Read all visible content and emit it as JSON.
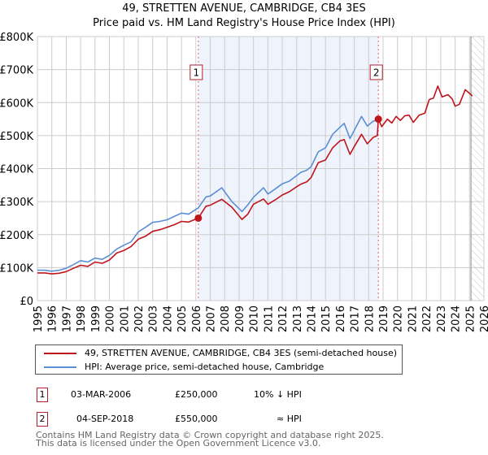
{
  "header": {
    "title": "49, STRETTEN AVENUE, CAMBRIDGE, CB4 3ES",
    "subtitle": "Price paid vs. HM Land Registry's House Price Index (HPI)"
  },
  "colors": {
    "price_paid": "#c0141c",
    "hpi": "#5b8fd4",
    "shade": "#eef3fc",
    "marker_border": "#b01e2a",
    "grid": "#cccccc"
  },
  "chart_data": {
    "type": "line",
    "title": "Price paid vs. HM Land Registry's House Price Index (HPI)",
    "xlabel": "",
    "ylabel": "",
    "xlim": [
      1995,
      2026
    ],
    "ylim": [
      0,
      800000
    ],
    "grid": true,
    "x_ticks": [
      "1995",
      "1996",
      "1997",
      "1998",
      "1999",
      "2000",
      "2001",
      "2002",
      "2003",
      "2004",
      "2005",
      "2006",
      "2007",
      "2008",
      "2009",
      "2010",
      "2011",
      "2012",
      "2013",
      "2014",
      "2015",
      "2016",
      "2017",
      "2018",
      "2019",
      "2020",
      "2021",
      "2022",
      "2023",
      "2024",
      "2025",
      "2026"
    ],
    "y_ticks": [
      {
        "value": 0,
        "label": "£0"
      },
      {
        "value": 100000,
        "label": "£100K"
      },
      {
        "value": 200000,
        "label": "£200K"
      },
      {
        "value": 300000,
        "label": "£300K"
      },
      {
        "value": 400000,
        "label": "£400K"
      },
      {
        "value": 500000,
        "label": "£500K"
      },
      {
        "value": 600000,
        "label": "£600K"
      },
      {
        "value": 700000,
        "label": "£700K"
      },
      {
        "value": 800000,
        "label": "£800K"
      }
    ],
    "shaded_period": {
      "from": 2006.17,
      "to": 2018.67
    },
    "forecast_hatch_from": 2025.1,
    "series": [
      {
        "name": "49, STRETTEN AVENUE, CAMBRIDGE, CB4 3ES (semi-detached house)",
        "key": "price_paid",
        "x": [
          1995.0,
          1995.5,
          1996.0,
          1996.5,
          1997.0,
          1997.5,
          1998.0,
          1998.5,
          1999.0,
          1999.5,
          2000.0,
          2000.5,
          2001.0,
          2001.5,
          2002.0,
          2002.5,
          2003.0,
          2003.5,
          2004.0,
          2004.5,
          2005.0,
          2005.5,
          2006.17,
          2006.7,
          2007.0,
          2007.8,
          2008.5,
          2009.2,
          2009.6,
          2010.0,
          2010.7,
          2011.0,
          2011.5,
          2012.0,
          2012.5,
          2013.0,
          2013.3,
          2013.7,
          2014.0,
          2014.5,
          2015.0,
          2015.5,
          2016.0,
          2016.3,
          2016.7,
          2017.0,
          2017.5,
          2017.9,
          2018.3,
          2018.6,
          2018.67,
          2018.9,
          2019.3,
          2019.6,
          2019.9,
          2020.2,
          2020.5,
          2020.8,
          2021.1,
          2021.5,
          2021.9,
          2022.2,
          2022.5,
          2022.8,
          2023.1,
          2023.5,
          2023.8,
          2024.0,
          2024.3,
          2024.7,
          2025.0,
          2025.2
        ],
        "y": [
          84000,
          84000,
          81000,
          83000,
          88000,
          98000,
          107000,
          104000,
          117000,
          113000,
          123000,
          144000,
          152000,
          164000,
          186000,
          195000,
          210000,
          215000,
          222000,
          230000,
          240000,
          238000,
          250000,
          286000,
          289000,
          307000,
          283000,
          246000,
          262000,
          292000,
          308000,
          292000,
          305000,
          320000,
          330000,
          345000,
          353000,
          360000,
          373000,
          418000,
          426000,
          463000,
          484000,
          488000,
          443000,
          467000,
          504000,
          475000,
          494000,
          500000,
          550000,
          527000,
          550000,
          538000,
          558000,
          546000,
          560000,
          562000,
          540000,
          562000,
          568000,
          609000,
          614000,
          650000,
          617000,
          624000,
          611000,
          589000,
          595000,
          639000,
          628000,
          620000
        ]
      },
      {
        "name": "HPI: Average price, semi-detached house, Cambridge",
        "key": "hpi",
        "x": [
          1995.0,
          1995.5,
          1996.0,
          1996.5,
          1997.0,
          1997.5,
          1998.0,
          1998.5,
          1999.0,
          1999.5,
          2000.0,
          2000.5,
          2001.0,
          2001.5,
          2002.0,
          2002.5,
          2003.0,
          2003.5,
          2004.0,
          2004.5,
          2005.0,
          2005.5,
          2006.17,
          2006.7,
          2007.0,
          2007.8,
          2008.5,
          2009.2,
          2009.6,
          2010.0,
          2010.7,
          2011.0,
          2011.5,
          2012.0,
          2012.5,
          2013.0,
          2013.3,
          2013.7,
          2014.0,
          2014.5,
          2015.0,
          2015.5,
          2016.0,
          2016.3,
          2016.7,
          2017.0,
          2017.5,
          2017.9,
          2018.3,
          2018.67
        ],
        "y": [
          92000,
          92000,
          89000,
          92000,
          98000,
          109000,
          121000,
          117000,
          129000,
          125000,
          137000,
          156000,
          168000,
          178000,
          208000,
          222000,
          237000,
          240000,
          245000,
          255000,
          265000,
          262000,
          281000,
          314000,
          317000,
          342000,
          300000,
          270000,
          290000,
          313000,
          342000,
          323000,
          338000,
          354000,
          362000,
          379000,
          389000,
          395000,
          406000,
          451000,
          463000,
          504000,
          525000,
          537000,
          491000,
          516000,
          558000,
          529000,
          543000,
          550000
        ]
      }
    ],
    "annotations": [
      {
        "label": "1",
        "x": 2006.17,
        "y": 250000
      },
      {
        "label": "2",
        "x": 2018.67,
        "y": 550000
      }
    ]
  },
  "legend": {
    "items": [
      {
        "label": "49, STRETTEN AVENUE, CAMBRIDGE, CB4 3ES (semi-detached house)"
      },
      {
        "label": "HPI: Average price, semi-detached house, Cambridge"
      }
    ]
  },
  "transactions": [
    {
      "num": "1",
      "date": "03-MAR-2006",
      "price": "£250,000",
      "hpi": "10% ↓ HPI"
    },
    {
      "num": "2",
      "date": "04-SEP-2018",
      "price": "£550,000",
      "hpi": "≈ HPI"
    }
  ],
  "footer": {
    "line1": "Contains HM Land Registry data © Crown copyright and database right 2025.",
    "line2": "This data is licensed under the Open Government Licence v3.0."
  }
}
